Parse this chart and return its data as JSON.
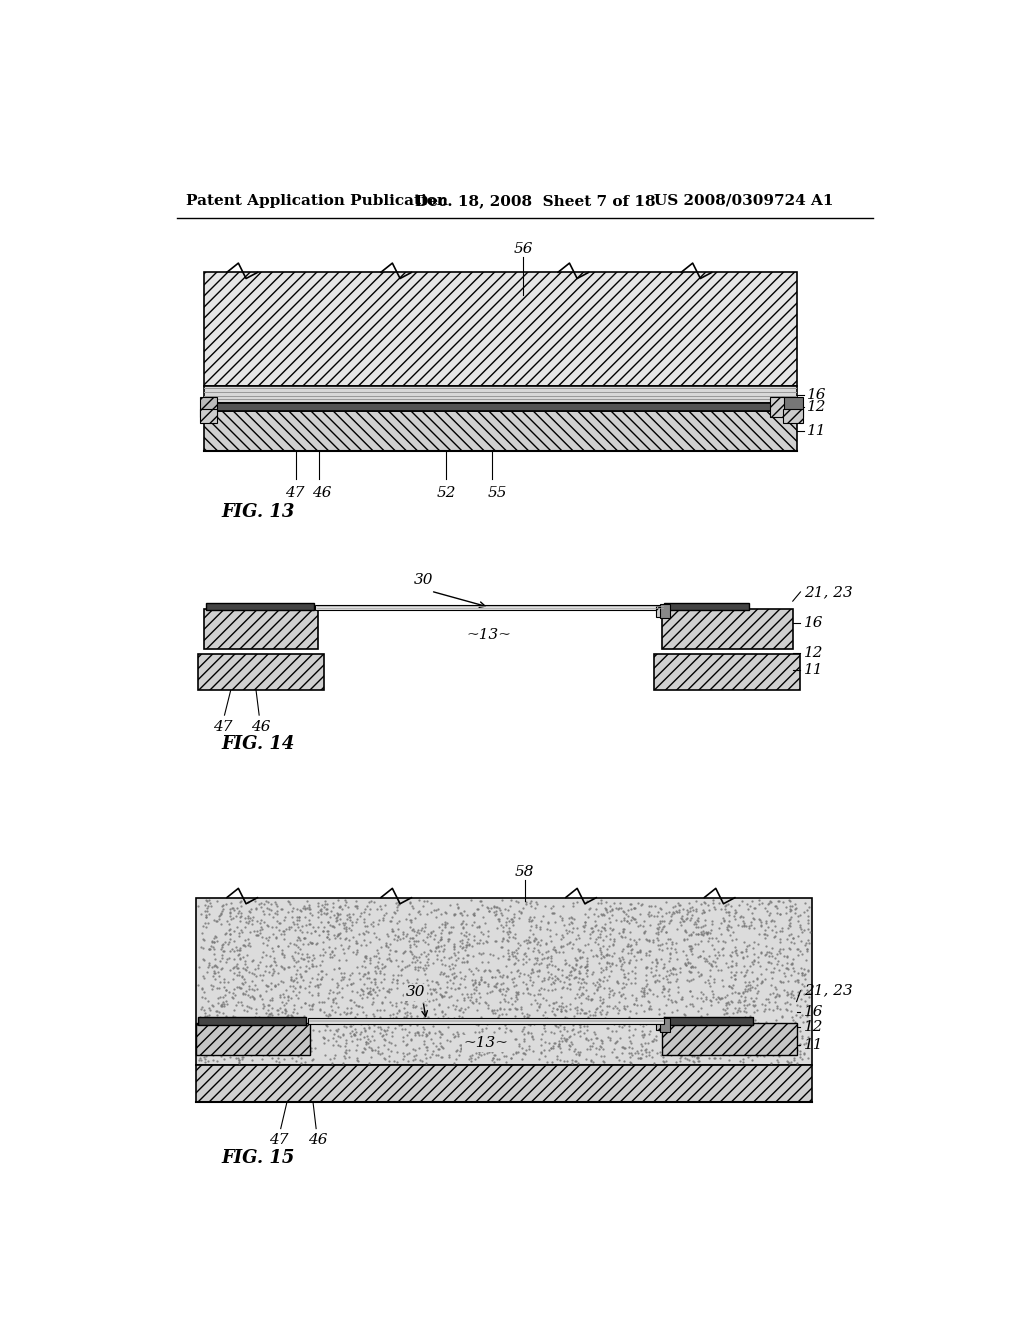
{
  "bg_color": "#ffffff",
  "header_text": "Patent Application Publication",
  "header_date": "Dec. 18, 2008  Sheet 7 of 18",
  "header_patent": "US 2008/0309724 A1",
  "fig13_label": "FIG. 13",
  "fig14_label": "FIG. 14",
  "fig15_label": "FIG. 15"
}
